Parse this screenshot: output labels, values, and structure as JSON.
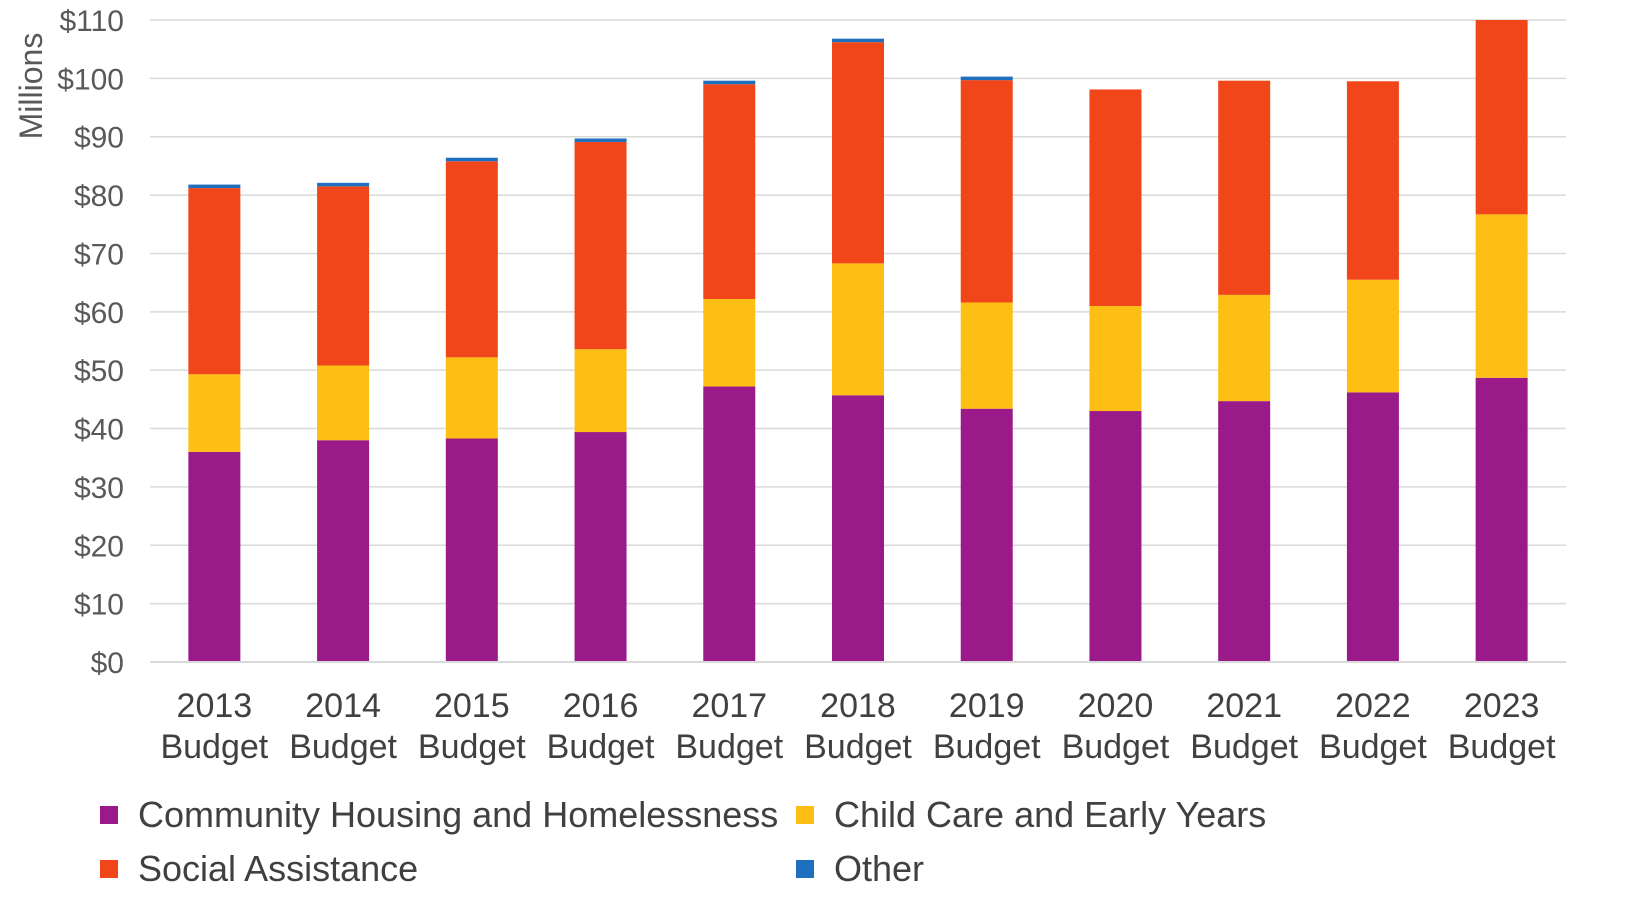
{
  "chart_data": {
    "type": "bar",
    "stacked": true,
    "ylabel": "Millions",
    "ylim": [
      0,
      110
    ],
    "yticks": [
      0,
      10,
      20,
      30,
      40,
      50,
      60,
      70,
      80,
      90,
      100,
      110
    ],
    "ytick_labels": [
      "$0",
      "$10",
      "$20",
      "$30",
      "$40",
      "$50",
      "$60",
      "$70",
      "$80",
      "$90",
      "$100",
      "$110"
    ],
    "grid": true,
    "legend_position": "bottom",
    "categories": [
      [
        "2013",
        "Budget"
      ],
      [
        "2014",
        "Budget"
      ],
      [
        "2015",
        "Budget"
      ],
      [
        "2016",
        "Budget"
      ],
      [
        "2017",
        "Budget"
      ],
      [
        "2018",
        "Budget"
      ],
      [
        "2019",
        "Budget"
      ],
      [
        "2020",
        "Budget"
      ],
      [
        "2021",
        "Budget"
      ],
      [
        "2022",
        "Budget"
      ],
      [
        "2023",
        "Budget"
      ]
    ],
    "series": [
      {
        "name": "Community Housing and Homelessness",
        "color": "#9b1a8a",
        "values": [
          36.0,
          38.0,
          38.3,
          39.4,
          47.2,
          45.7,
          43.4,
          43.0,
          44.7,
          46.2,
          48.7
        ]
      },
      {
        "name": "Child Care and Early Years",
        "color": "#fdbf14",
        "values": [
          13.3,
          12.8,
          13.9,
          14.2,
          15.0,
          22.6,
          18.2,
          18.0,
          18.2,
          19.3,
          28.0
        ]
      },
      {
        "name": "Social Assistance",
        "color": "#f0461a",
        "values": [
          31.9,
          30.7,
          33.6,
          35.5,
          36.8,
          37.9,
          38.1,
          37.1,
          36.7,
          34.0,
          33.3
        ]
      },
      {
        "name": "Other",
        "color": "#1f6fbf",
        "values": [
          0.6,
          0.6,
          0.6,
          0.6,
          0.6,
          0.6,
          0.6,
          0.0,
          0.0,
          0.0,
          0.0
        ]
      }
    ]
  }
}
